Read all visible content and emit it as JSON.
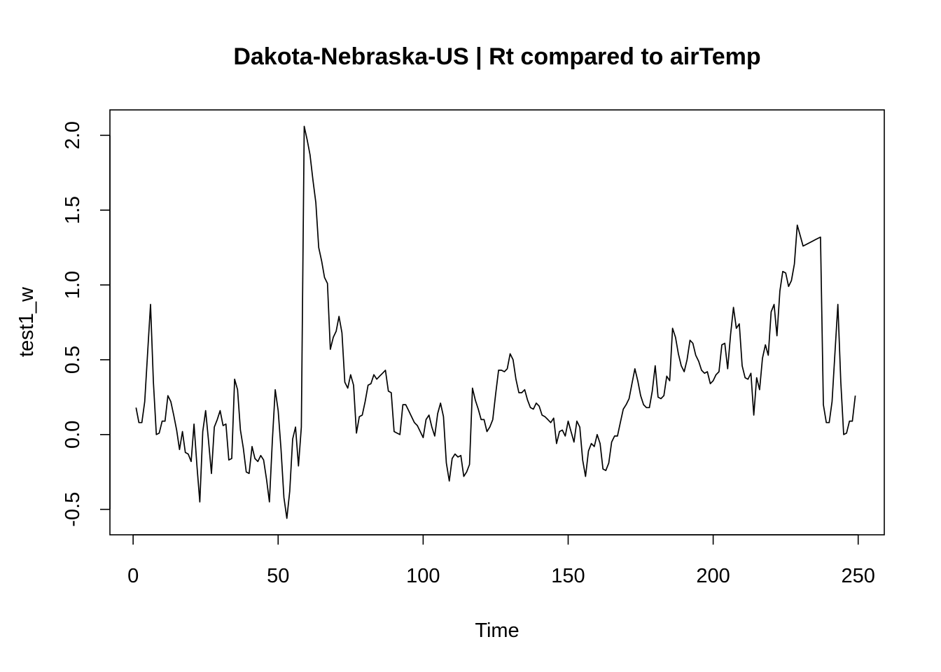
{
  "chart_data": {
    "type": "line",
    "title": "Dakota-Nebraska-US | Rt compared to airTemp",
    "xlabel": "Time",
    "ylabel": "test1_w",
    "xlim": [
      -8,
      259
    ],
    "ylim": [
      -0.67,
      2.17
    ],
    "xticks": [
      0,
      50,
      100,
      150,
      200,
      250
    ],
    "yticks": [
      -0.5,
      0.0,
      0.5,
      1.0,
      1.5,
      2.0
    ],
    "xtick_labels": [
      "0",
      "50",
      "100",
      "150",
      "200",
      "250"
    ],
    "ytick_labels": [
      "-0.5",
      "0.0",
      "0.5",
      "1.0",
      "1.5",
      "2.0"
    ],
    "grid": false,
    "series": [
      {
        "x_start": 1,
        "values": [
          0.18,
          0.08,
          0.08,
          0.22,
          0.55,
          0.87,
          0.35,
          0.0,
          0.01,
          0.09,
          0.09,
          0.26,
          0.22,
          0.13,
          0.03,
          -0.1,
          0.02,
          -0.12,
          -0.13,
          -0.18,
          0.07,
          -0.21,
          -0.45,
          0.02,
          0.16,
          -0.04,
          -0.26,
          0.05,
          0.1,
          0.16,
          0.06,
          0.07,
          -0.17,
          -0.16,
          0.37,
          0.3,
          0.03,
          -0.09,
          -0.25,
          -0.26,
          -0.08,
          -0.16,
          -0.18,
          -0.14,
          -0.17,
          -0.3,
          -0.45,
          -0.04,
          0.3,
          0.16,
          -0.1,
          -0.42,
          -0.56,
          -0.38,
          -0.03,
          0.05,
          -0.21,
          0.05,
          2.06,
          1.97,
          1.87,
          1.7,
          1.55,
          1.25,
          1.16,
          1.05,
          1.01,
          0.57,
          0.65,
          0.69,
          0.79,
          0.68,
          0.35,
          0.31,
          0.4,
          0.33,
          0.01,
          0.12,
          0.13,
          0.22,
          0.33,
          0.34,
          0.4,
          0.37,
          0.39,
          0.41,
          0.43,
          0.29,
          0.28,
          0.02,
          0.01,
          0.0,
          0.2,
          0.2,
          0.16,
          0.12,
          0.08,
          0.06,
          0.02,
          -0.02,
          0.1,
          0.13,
          0.05,
          -0.01,
          0.14,
          0.21,
          0.12,
          -0.19,
          -0.31,
          -0.16,
          -0.13,
          -0.15,
          -0.14,
          -0.28,
          -0.25,
          -0.2,
          0.31,
          0.23,
          0.17,
          0.1,
          0.1,
          0.02,
          0.05,
          0.1,
          0.27,
          0.43,
          0.43,
          0.42,
          0.44,
          0.54,
          0.5,
          0.37,
          0.28,
          0.28,
          0.3,
          0.23,
          0.18,
          0.17,
          0.21,
          0.19,
          0.13,
          0.12,
          0.1,
          0.08,
          0.11,
          -0.06,
          0.02,
          0.03,
          -0.01,
          0.09,
          0.02,
          -0.05,
          0.09,
          0.05,
          -0.17,
          -0.28,
          -0.11,
          -0.06,
          -0.08,
          0.0,
          -0.06,
          -0.23,
          -0.24,
          -0.19,
          -0.05,
          -0.01,
          -0.01,
          0.08,
          0.17,
          0.2,
          0.24,
          0.34,
          0.44,
          0.36,
          0.26,
          0.2,
          0.18,
          0.18,
          0.29,
          0.46,
          0.25,
          0.24,
          0.26,
          0.39,
          0.36,
          0.71,
          0.65,
          0.54,
          0.46,
          0.42,
          0.5,
          0.63,
          0.61,
          0.53,
          0.49,
          0.43,
          0.41,
          0.42,
          0.34,
          0.36,
          0.4,
          0.42,
          0.6,
          0.61,
          0.44,
          0.67,
          0.85,
          0.71,
          0.74,
          0.46,
          0.38,
          0.37,
          0.41,
          0.13,
          0.38,
          0.3,
          0.51,
          0.6,
          0.53,
          0.82,
          0.87,
          0.66,
          0.96,
          1.09,
          1.08,
          0.99,
          1.03,
          1.14,
          1.4,
          1.33,
          1.26,
          1.27,
          1.28,
          1.29,
          1.3,
          1.31,
          1.32,
          0.2,
          0.08,
          0.08,
          0.22,
          0.55,
          0.87,
          0.35,
          0.0,
          0.01,
          0.09,
          0.09,
          0.26
        ]
      }
    ]
  }
}
